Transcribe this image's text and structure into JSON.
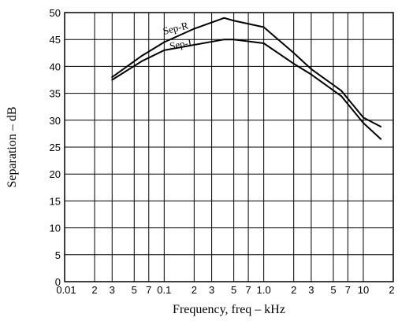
{
  "chart_data": {
    "type": "line",
    "xlabel": "Frequency, freq – kHz",
    "ylabel": "Separation – dB",
    "x_scale": "log",
    "xlim": [
      0.01,
      20
    ],
    "ylim": [
      0,
      50
    ],
    "grid": true,
    "x_ticks": [
      {
        "value": 0.01,
        "label": "0.01"
      },
      {
        "value": 0.02,
        "label": "2"
      },
      {
        "value": 0.03,
        "label": "3"
      },
      {
        "value": 0.05,
        "label": "5"
      },
      {
        "value": 0.07,
        "label": "7"
      },
      {
        "value": 0.1,
        "label": "0.1"
      },
      {
        "value": 0.2,
        "label": "2"
      },
      {
        "value": 0.3,
        "label": "3"
      },
      {
        "value": 0.5,
        "label": "5"
      },
      {
        "value": 0.7,
        "label": "7"
      },
      {
        "value": 1,
        "label": "1.0"
      },
      {
        "value": 2,
        "label": "2"
      },
      {
        "value": 3,
        "label": "3"
      },
      {
        "value": 5,
        "label": "5"
      },
      {
        "value": 7,
        "label": "7"
      },
      {
        "value": 10,
        "label": "10"
      },
      {
        "value": 20,
        "label": "2"
      }
    ],
    "y_ticks": [
      0,
      5,
      10,
      15,
      20,
      25,
      30,
      35,
      40,
      45,
      50
    ],
    "series": [
      {
        "name": "Sep-R",
        "color": "#000000",
        "points": [
          [
            0.03,
            38
          ],
          [
            0.06,
            42
          ],
          [
            0.1,
            44.5
          ],
          [
            0.2,
            47
          ],
          [
            0.4,
            49
          ],
          [
            0.5,
            48.5
          ],
          [
            1,
            47.3
          ],
          [
            2,
            42.5
          ],
          [
            3,
            39.5
          ],
          [
            6,
            35.5
          ],
          [
            10,
            30.5
          ],
          [
            15,
            28.8
          ]
        ]
      },
      {
        "name": "Sep-L",
        "color": "#000000",
        "points": [
          [
            0.03,
            37.5
          ],
          [
            0.06,
            41
          ],
          [
            0.1,
            43
          ],
          [
            0.2,
            44
          ],
          [
            0.4,
            45
          ],
          [
            0.5,
            45
          ],
          [
            1,
            44.3
          ],
          [
            2,
            40.5
          ],
          [
            3,
            38.5
          ],
          [
            6,
            34.5
          ],
          [
            10,
            29.5
          ],
          [
            15,
            26.5
          ]
        ]
      }
    ]
  }
}
